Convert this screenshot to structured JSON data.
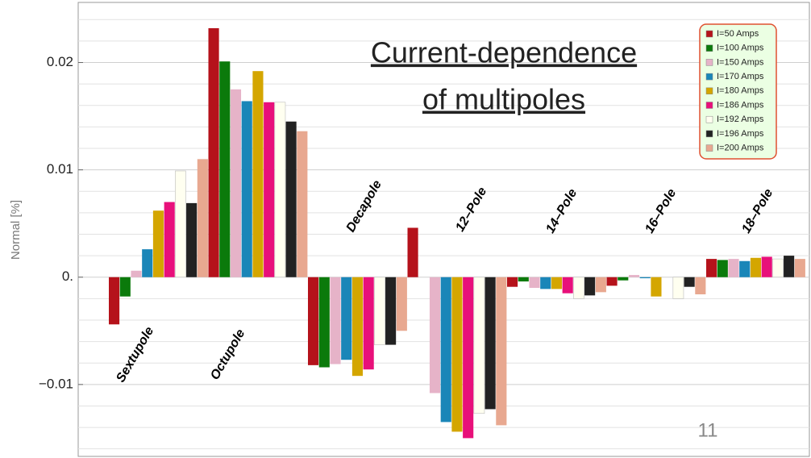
{
  "chart_data": {
    "type": "bar",
    "title": "Current-dependence of multipoles",
    "title_lines": [
      "Current-dependence",
      "of multipoles"
    ],
    "y_label": "Normal [%]",
    "page_number": "11",
    "categories": [
      "Sextupole",
      "Octupole",
      "Decapole",
      "12–Pole",
      "14–Pole",
      "16–Pole",
      "18–Pole"
    ],
    "series": [
      {
        "name": "I=50 Amps",
        "color": "#b5121b",
        "values": [
          -0.0044,
          0.0232,
          -0.0082,
          0.0046,
          -0.0009,
          -0.0008,
          0.0017
        ]
      },
      {
        "name": "I=100 Amps",
        "color": "#0b7a0b",
        "values": [
          -0.0018,
          0.0201,
          -0.0084,
          0,
          -0.0004,
          -0.0003,
          0.0016
        ]
      },
      {
        "name": "I=150 Amps",
        "color": "#e6b3c8",
        "values": [
          0.0006,
          0.0175,
          -0.0081,
          -0.0108,
          -0.001,
          0.0002,
          0.0017
        ]
      },
      {
        "name": "I=170 Amps",
        "color": "#1a86b8",
        "values": [
          0.0026,
          0.0164,
          -0.0077,
          -0.0135,
          -0.0011,
          -0.0001,
          0.0015
        ]
      },
      {
        "name": "I=180 Amps",
        "color": "#d4a600",
        "values": [
          0.0062,
          0.0192,
          -0.0092,
          -0.0144,
          -0.0011,
          -0.0018,
          0.0018
        ]
      },
      {
        "name": "I=186 Amps",
        "color": "#e8107a",
        "values": [
          0.007,
          0.0163,
          -0.0086,
          -0.015,
          -0.0015,
          0,
          0.0019
        ]
      },
      {
        "name": "I=192 Amps",
        "color": "#fffff0",
        "values": [
          0.0099,
          0.0163,
          -0.0063,
          -0.0127,
          -0.002,
          -0.002,
          0.0017
        ]
      },
      {
        "name": "I=196 Amps",
        "color": "#222222",
        "values": [
          0.0069,
          0.0145,
          -0.0063,
          -0.0123,
          -0.0017,
          -0.0009,
          0.002
        ]
      },
      {
        "name": "I=200 Amps",
        "color": "#e8a890",
        "values": [
          0.011,
          0.0136,
          -0.005,
          -0.0138,
          -0.0014,
          -0.0016,
          0.0017
        ]
      }
    ],
    "ylim": [
      -0.0167,
      0.0256
    ],
    "yticks": [
      {
        "value": -0.01,
        "label": "−0.01"
      },
      {
        "value": 0,
        "label": "0."
      },
      0.01,
      0.02
    ],
    "minor_yticks": [
      -0.016,
      -0.014,
      -0.012,
      -0.008,
      -0.006,
      -0.004,
      -0.002,
      0.002,
      0.004,
      0.006,
      0.008,
      0.012,
      0.014,
      0.016,
      0.018,
      0.022,
      0.024
    ],
    "grid": true
  }
}
